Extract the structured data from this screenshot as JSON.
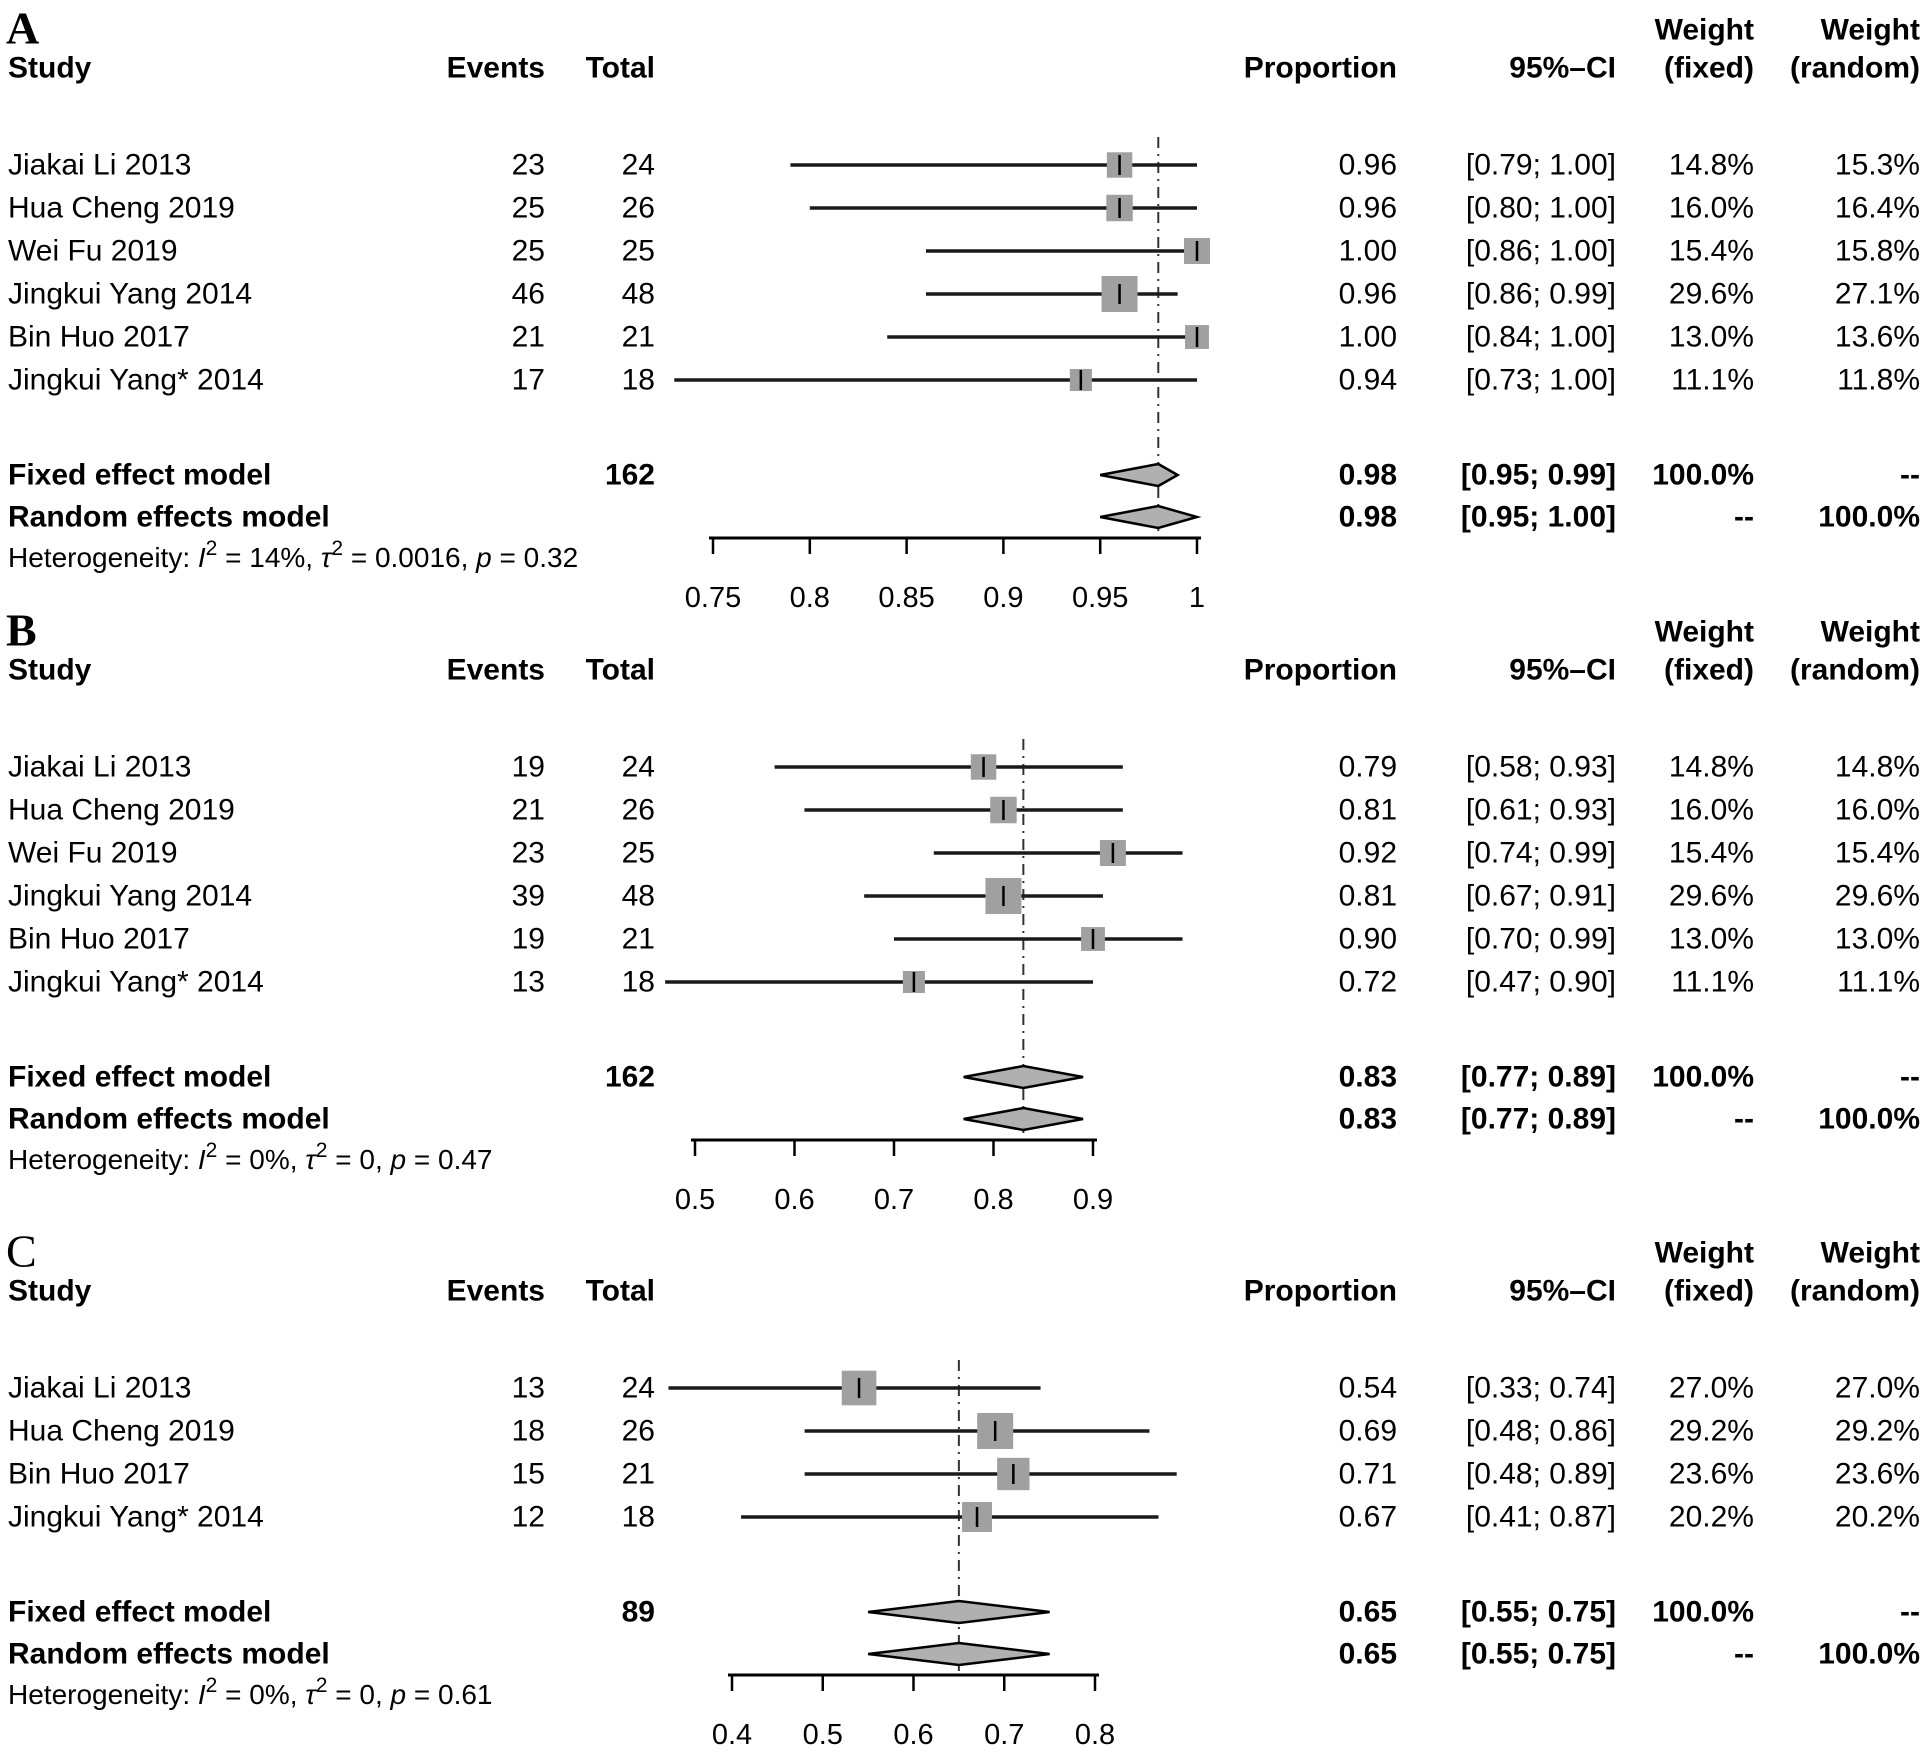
{
  "figure": {
    "type": "forest-plot-meta-analysis",
    "background": "#ffffff",
    "text_color": "#000000",
    "square_color": "#a0a0a0",
    "square_tick_color": "#000000",
    "diamond_color": "#b0b0b0",
    "ci_line_color": "#1a1a1a",
    "dashed_line_color": "#333333"
  },
  "chart_data": [
    {
      "type": "forest",
      "label": "A",
      "headers": {
        "study": "Study",
        "events": "Events",
        "total": "Total",
        "proportion": "Proportion",
        "ci": "95%–CI",
        "weight_fixed_top": "Weight",
        "weight_fixed_bottom": "(fixed)",
        "weight_random_top": "Weight",
        "weight_random_bottom": "(random)"
      },
      "studies": [
        {
          "study": "Jiakai Li 2013",
          "events": "23",
          "total": "24",
          "est": 0.96,
          "lo": 0.79,
          "hi": 1.0,
          "proportion": "0.96",
          "ci": "[0.79; 1.00]",
          "w_fixed": "14.8%",
          "w_random": "15.3%"
        },
        {
          "study": "Hua Cheng 2019",
          "events": "25",
          "total": "26",
          "est": 0.96,
          "lo": 0.8,
          "hi": 1.0,
          "proportion": "0.96",
          "ci": "[0.80; 1.00]",
          "w_fixed": "16.0%",
          "w_random": "16.4%"
        },
        {
          "study": "Wei Fu 2019",
          "events": "25",
          "total": "25",
          "est": 1.0,
          "lo": 0.86,
          "hi": 1.0,
          "proportion": "1.00",
          "ci": "[0.86; 1.00]",
          "w_fixed": "15.4%",
          "w_random": "15.8%"
        },
        {
          "study": "Jingkui Yang 2014",
          "events": "46",
          "total": "48",
          "est": 0.96,
          "lo": 0.86,
          "hi": 0.99,
          "proportion": "0.96",
          "ci": "[0.86; 0.99]",
          "w_fixed": "29.6%",
          "w_random": "27.1%"
        },
        {
          "study": "Bin Huo 2017",
          "events": "21",
          "total": "21",
          "est": 1.0,
          "lo": 0.84,
          "hi": 1.0,
          "proportion": "1.00",
          "ci": "[0.84; 1.00]",
          "w_fixed": "13.0%",
          "w_random": "13.6%"
        },
        {
          "study": "Jingkui Yang* 2014",
          "events": "17",
          "total": "18",
          "est": 0.94,
          "lo": 0.73,
          "hi": 1.0,
          "proportion": "0.94",
          "ci": "[0.73; 1.00]",
          "w_fixed": "11.1%",
          "w_random": "11.8%"
        }
      ],
      "summary_rows": [
        {
          "label": "Fixed effect model",
          "total": "162",
          "est": 0.98,
          "lo": 0.95,
          "hi": 0.99,
          "proportion": "0.98",
          "ci": "[0.95; 0.99]",
          "w_fixed": "100.0%",
          "w_random": "--"
        },
        {
          "label": "Random effects model",
          "total": "",
          "est": 0.98,
          "lo": 0.95,
          "hi": 1.0,
          "proportion": "0.98",
          "ci": "[0.95; 1.00]",
          "w_fixed": "--",
          "w_random": "100.0%"
        }
      ],
      "heterogeneity_parts": [
        {
          "t": "Heterogeneity: ",
          "style": "plain"
        },
        {
          "t": "I",
          "style": "italic"
        },
        {
          "t": "2",
          "style": "sup"
        },
        {
          "t": " = 14%, ",
          "style": "plain"
        },
        {
          "t": "τ",
          "style": "italic"
        },
        {
          "t": "2",
          "style": "sup"
        },
        {
          "t": " = 0.0016, ",
          "style": "plain"
        },
        {
          "t": "p",
          "style": "italic"
        },
        {
          "t": " = 0.32",
          "style": "plain"
        }
      ],
      "axis": {
        "min": 0.75,
        "max": 1.0,
        "tick_values": [
          0.75,
          0.8,
          0.85,
          0.9,
          0.95,
          1.0
        ],
        "tick_labels": [
          "0.75",
          "0.8",
          "0.85",
          "0.9",
          "0.95",
          "1"
        ]
      },
      "dashed_line_at": 0.98
    },
    {
      "type": "forest",
      "label": "B",
      "headers": {
        "study": "Study",
        "events": "Events",
        "total": "Total",
        "proportion": "Proportion",
        "ci": "95%–CI",
        "weight_fixed_top": "Weight",
        "weight_fixed_bottom": "(fixed)",
        "weight_random_top": "Weight",
        "weight_random_bottom": "(random)"
      },
      "studies": [
        {
          "study": "Jiakai Li 2013",
          "events": "19",
          "total": "24",
          "est": 0.79,
          "lo": 0.58,
          "hi": 0.93,
          "proportion": "0.79",
          "ci": "[0.58; 0.93]",
          "w_fixed": "14.8%",
          "w_random": "14.8%"
        },
        {
          "study": "Hua Cheng 2019",
          "events": "21",
          "total": "26",
          "est": 0.81,
          "lo": 0.61,
          "hi": 0.93,
          "proportion": "0.81",
          "ci": "[0.61; 0.93]",
          "w_fixed": "16.0%",
          "w_random": "16.0%"
        },
        {
          "study": "Wei Fu 2019",
          "events": "23",
          "total": "25",
          "est": 0.92,
          "lo": 0.74,
          "hi": 0.99,
          "proportion": "0.92",
          "ci": "[0.74; 0.99]",
          "w_fixed": "15.4%",
          "w_random": "15.4%"
        },
        {
          "study": "Jingkui Yang 2014",
          "events": "39",
          "total": "48",
          "est": 0.81,
          "lo": 0.67,
          "hi": 0.91,
          "proportion": "0.81",
          "ci": "[0.67; 0.91]",
          "w_fixed": "29.6%",
          "w_random": "29.6%"
        },
        {
          "study": "Bin Huo 2017",
          "events": "19",
          "total": "21",
          "est": 0.9,
          "lo": 0.7,
          "hi": 0.99,
          "proportion": "0.90",
          "ci": "[0.70; 0.99]",
          "w_fixed": "13.0%",
          "w_random": "13.0%"
        },
        {
          "study": "Jingkui Yang* 2014",
          "events": "13",
          "total": "18",
          "est": 0.72,
          "lo": 0.47,
          "hi": 0.9,
          "proportion": "0.72",
          "ci": "[0.47; 0.90]",
          "w_fixed": "11.1%",
          "w_random": "11.1%"
        }
      ],
      "summary_rows": [
        {
          "label": "Fixed effect model",
          "total": "162",
          "est": 0.83,
          "lo": 0.77,
          "hi": 0.89,
          "proportion": "0.83",
          "ci": "[0.77; 0.89]",
          "w_fixed": "100.0%",
          "w_random": "--"
        },
        {
          "label": "Random effects model",
          "total": "",
          "est": 0.83,
          "lo": 0.77,
          "hi": 0.89,
          "proportion": "0.83",
          "ci": "[0.77; 0.89]",
          "w_fixed": "--",
          "w_random": "100.0%"
        }
      ],
      "heterogeneity_parts": [
        {
          "t": "Heterogeneity: ",
          "style": "plain"
        },
        {
          "t": "I",
          "style": "italic"
        },
        {
          "t": "2",
          "style": "sup"
        },
        {
          "t": " = 0%, ",
          "style": "plain"
        },
        {
          "t": "τ",
          "style": "italic"
        },
        {
          "t": "2",
          "style": "sup"
        },
        {
          "t": " = 0, ",
          "style": "plain"
        },
        {
          "t": "p",
          "style": "italic"
        },
        {
          "t": " = 0.47",
          "style": "plain"
        }
      ],
      "axis": {
        "min": 0.5,
        "max": 0.9,
        "tick_values": [
          0.5,
          0.6,
          0.7,
          0.8,
          0.9
        ],
        "tick_labels": [
          "0.5",
          "0.6",
          "0.7",
          "0.8",
          "0.9"
        ]
      },
      "dashed_line_at": 0.83
    },
    {
      "type": "forest",
      "label": "C",
      "headers": {
        "study": "Study",
        "events": "Events",
        "total": "Total",
        "proportion": "Proportion",
        "ci": "95%–CI",
        "weight_fixed_top": "Weight",
        "weight_fixed_bottom": "(fixed)",
        "weight_random_top": "Weight",
        "weight_random_bottom": "(random)"
      },
      "studies": [
        {
          "study": "Jiakai Li 2013",
          "events": "13",
          "total": "24",
          "est": 0.54,
          "lo": 0.33,
          "hi": 0.74,
          "proportion": "0.54",
          "ci": "[0.33; 0.74]",
          "w_fixed": "27.0%",
          "w_random": "27.0%"
        },
        {
          "study": "Hua Cheng 2019",
          "events": "18",
          "total": "26",
          "est": 0.69,
          "lo": 0.48,
          "hi": 0.86,
          "proportion": "0.69",
          "ci": "[0.48; 0.86]",
          "w_fixed": "29.2%",
          "w_random": "29.2%"
        },
        {
          "study": "Bin Huo 2017",
          "events": "15",
          "total": "21",
          "est": 0.71,
          "lo": 0.48,
          "hi": 0.89,
          "proportion": "0.71",
          "ci": "[0.48; 0.89]",
          "w_fixed": "23.6%",
          "w_random": "23.6%"
        },
        {
          "study": "Jingkui Yang* 2014",
          "events": "12",
          "total": "18",
          "est": 0.67,
          "lo": 0.41,
          "hi": 0.87,
          "proportion": "0.67",
          "ci": "[0.41; 0.87]",
          "w_fixed": "20.2%",
          "w_random": "20.2%"
        }
      ],
      "summary_rows": [
        {
          "label": "Fixed effect model",
          "total": "89",
          "est": 0.65,
          "lo": 0.55,
          "hi": 0.75,
          "proportion": "0.65",
          "ci": "[0.55; 0.75]",
          "w_fixed": "100.0%",
          "w_random": "--"
        },
        {
          "label": "Random effects model",
          "total": "",
          "est": 0.65,
          "lo": 0.55,
          "hi": 0.75,
          "proportion": "0.65",
          "ci": "[0.55; 0.75]",
          "w_fixed": "--",
          "w_random": "100.0%"
        }
      ],
      "heterogeneity_parts": [
        {
          "t": "Heterogeneity: ",
          "style": "plain"
        },
        {
          "t": "I",
          "style": "italic"
        },
        {
          "t": "2",
          "style": "sup"
        },
        {
          "t": " = 0%, ",
          "style": "plain"
        },
        {
          "t": "τ",
          "style": "italic"
        },
        {
          "t": "2",
          "style": "sup"
        },
        {
          "t": " = 0, ",
          "style": "plain"
        },
        {
          "t": "p",
          "style": "italic"
        },
        {
          "t": " = 0.61",
          "style": "plain"
        }
      ],
      "axis": {
        "min": 0.4,
        "max": 0.8,
        "tick_values": [
          0.4,
          0.5,
          0.6,
          0.7,
          0.8
        ],
        "tick_labels": [
          "0.4",
          "0.5",
          "0.6",
          "0.7",
          "0.8"
        ]
      },
      "dashed_line_at": 0.65
    }
  ]
}
